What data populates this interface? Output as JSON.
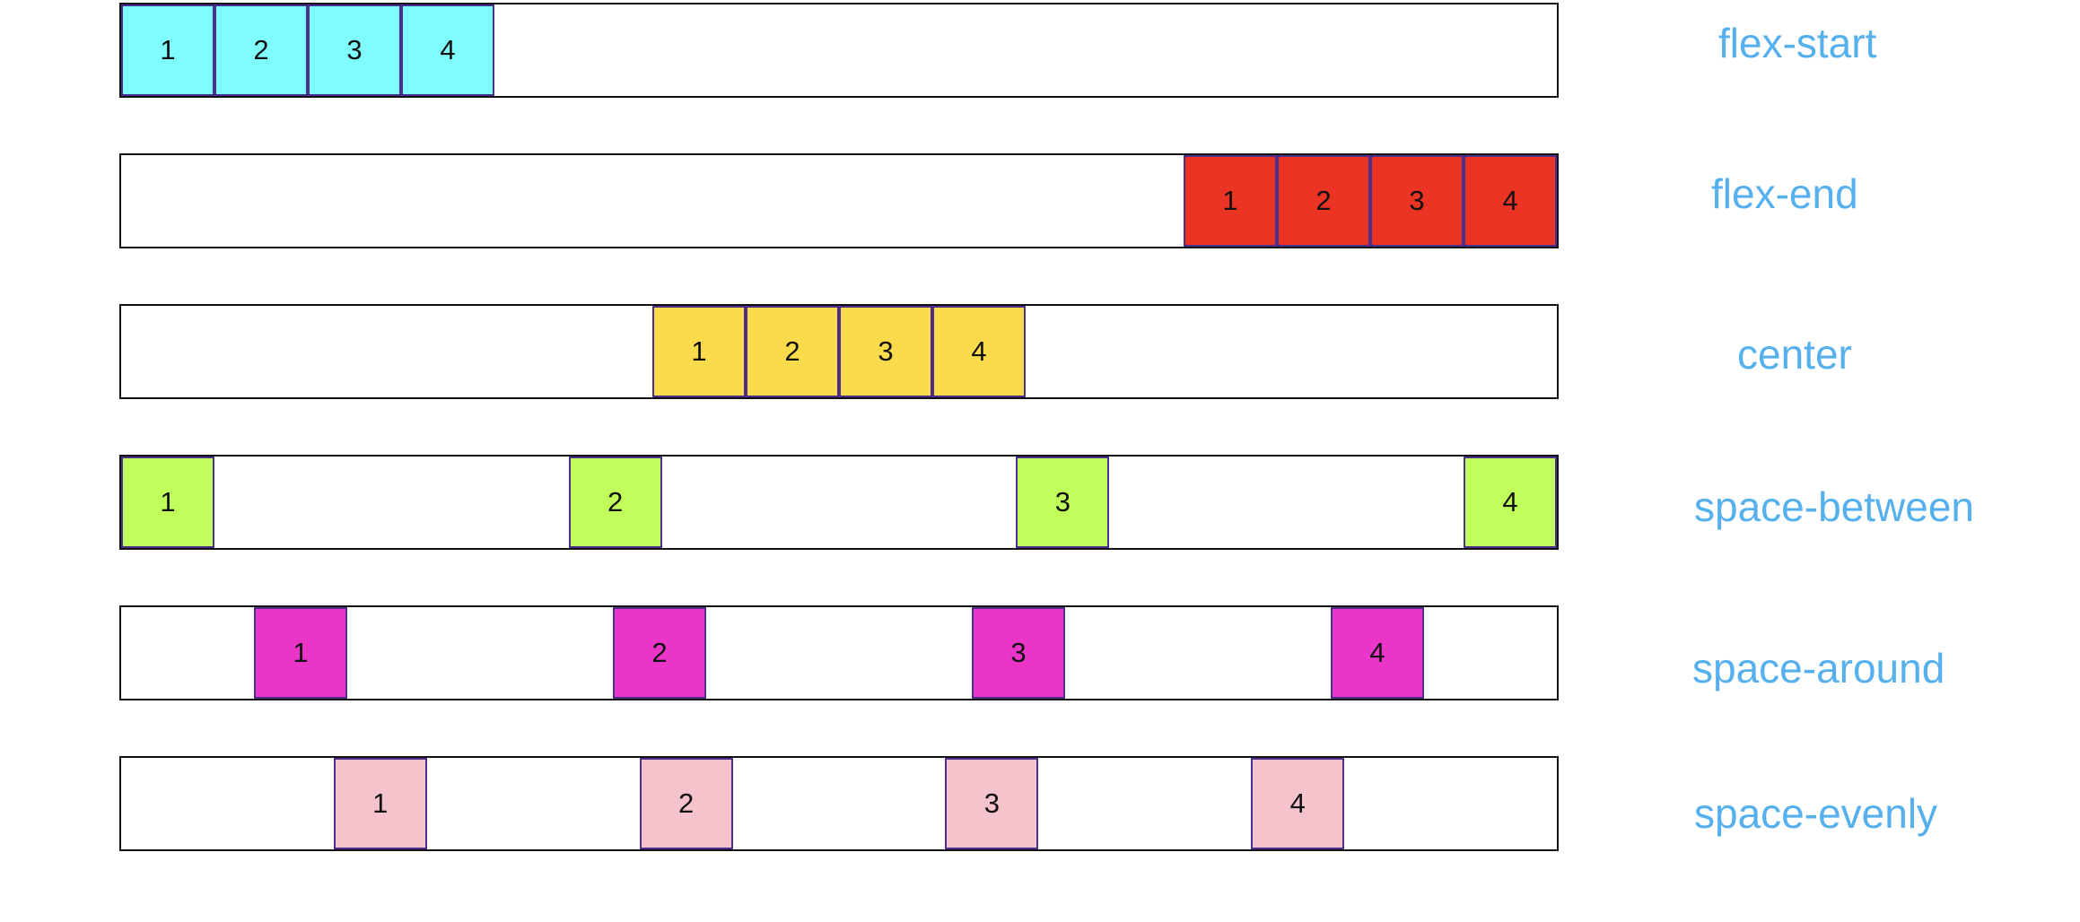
{
  "rows": [
    {
      "id": "flex-start",
      "label": "flex-start",
      "justify": "flex-start",
      "color": "#7efcfe",
      "items": [
        "1",
        "2",
        "3",
        "4"
      ]
    },
    {
      "id": "flex-end",
      "label": "flex-end",
      "justify": "flex-end",
      "color": "#eb3424",
      "items": [
        "1",
        "2",
        "3",
        "4"
      ]
    },
    {
      "id": "center",
      "label": "center",
      "justify": "center",
      "color": "#fadb4b",
      "items": [
        "1",
        "2",
        "3",
        "4"
      ]
    },
    {
      "id": "space-between",
      "label": "space-between",
      "justify": "space-between",
      "color": "#c0fe5b",
      "items": [
        "1",
        "2",
        "3",
        "4"
      ]
    },
    {
      "id": "space-around",
      "label": "space-around",
      "justify": "space-around",
      "color": "#e936c9",
      "items": [
        "1",
        "2",
        "3",
        "4"
      ]
    },
    {
      "id": "space-evenly",
      "label": "space-evenly",
      "justify": "space-evenly",
      "color": "#f4c3cb",
      "items": [
        "1",
        "2",
        "3",
        "4"
      ]
    }
  ],
  "label_color": "#56b0ee"
}
